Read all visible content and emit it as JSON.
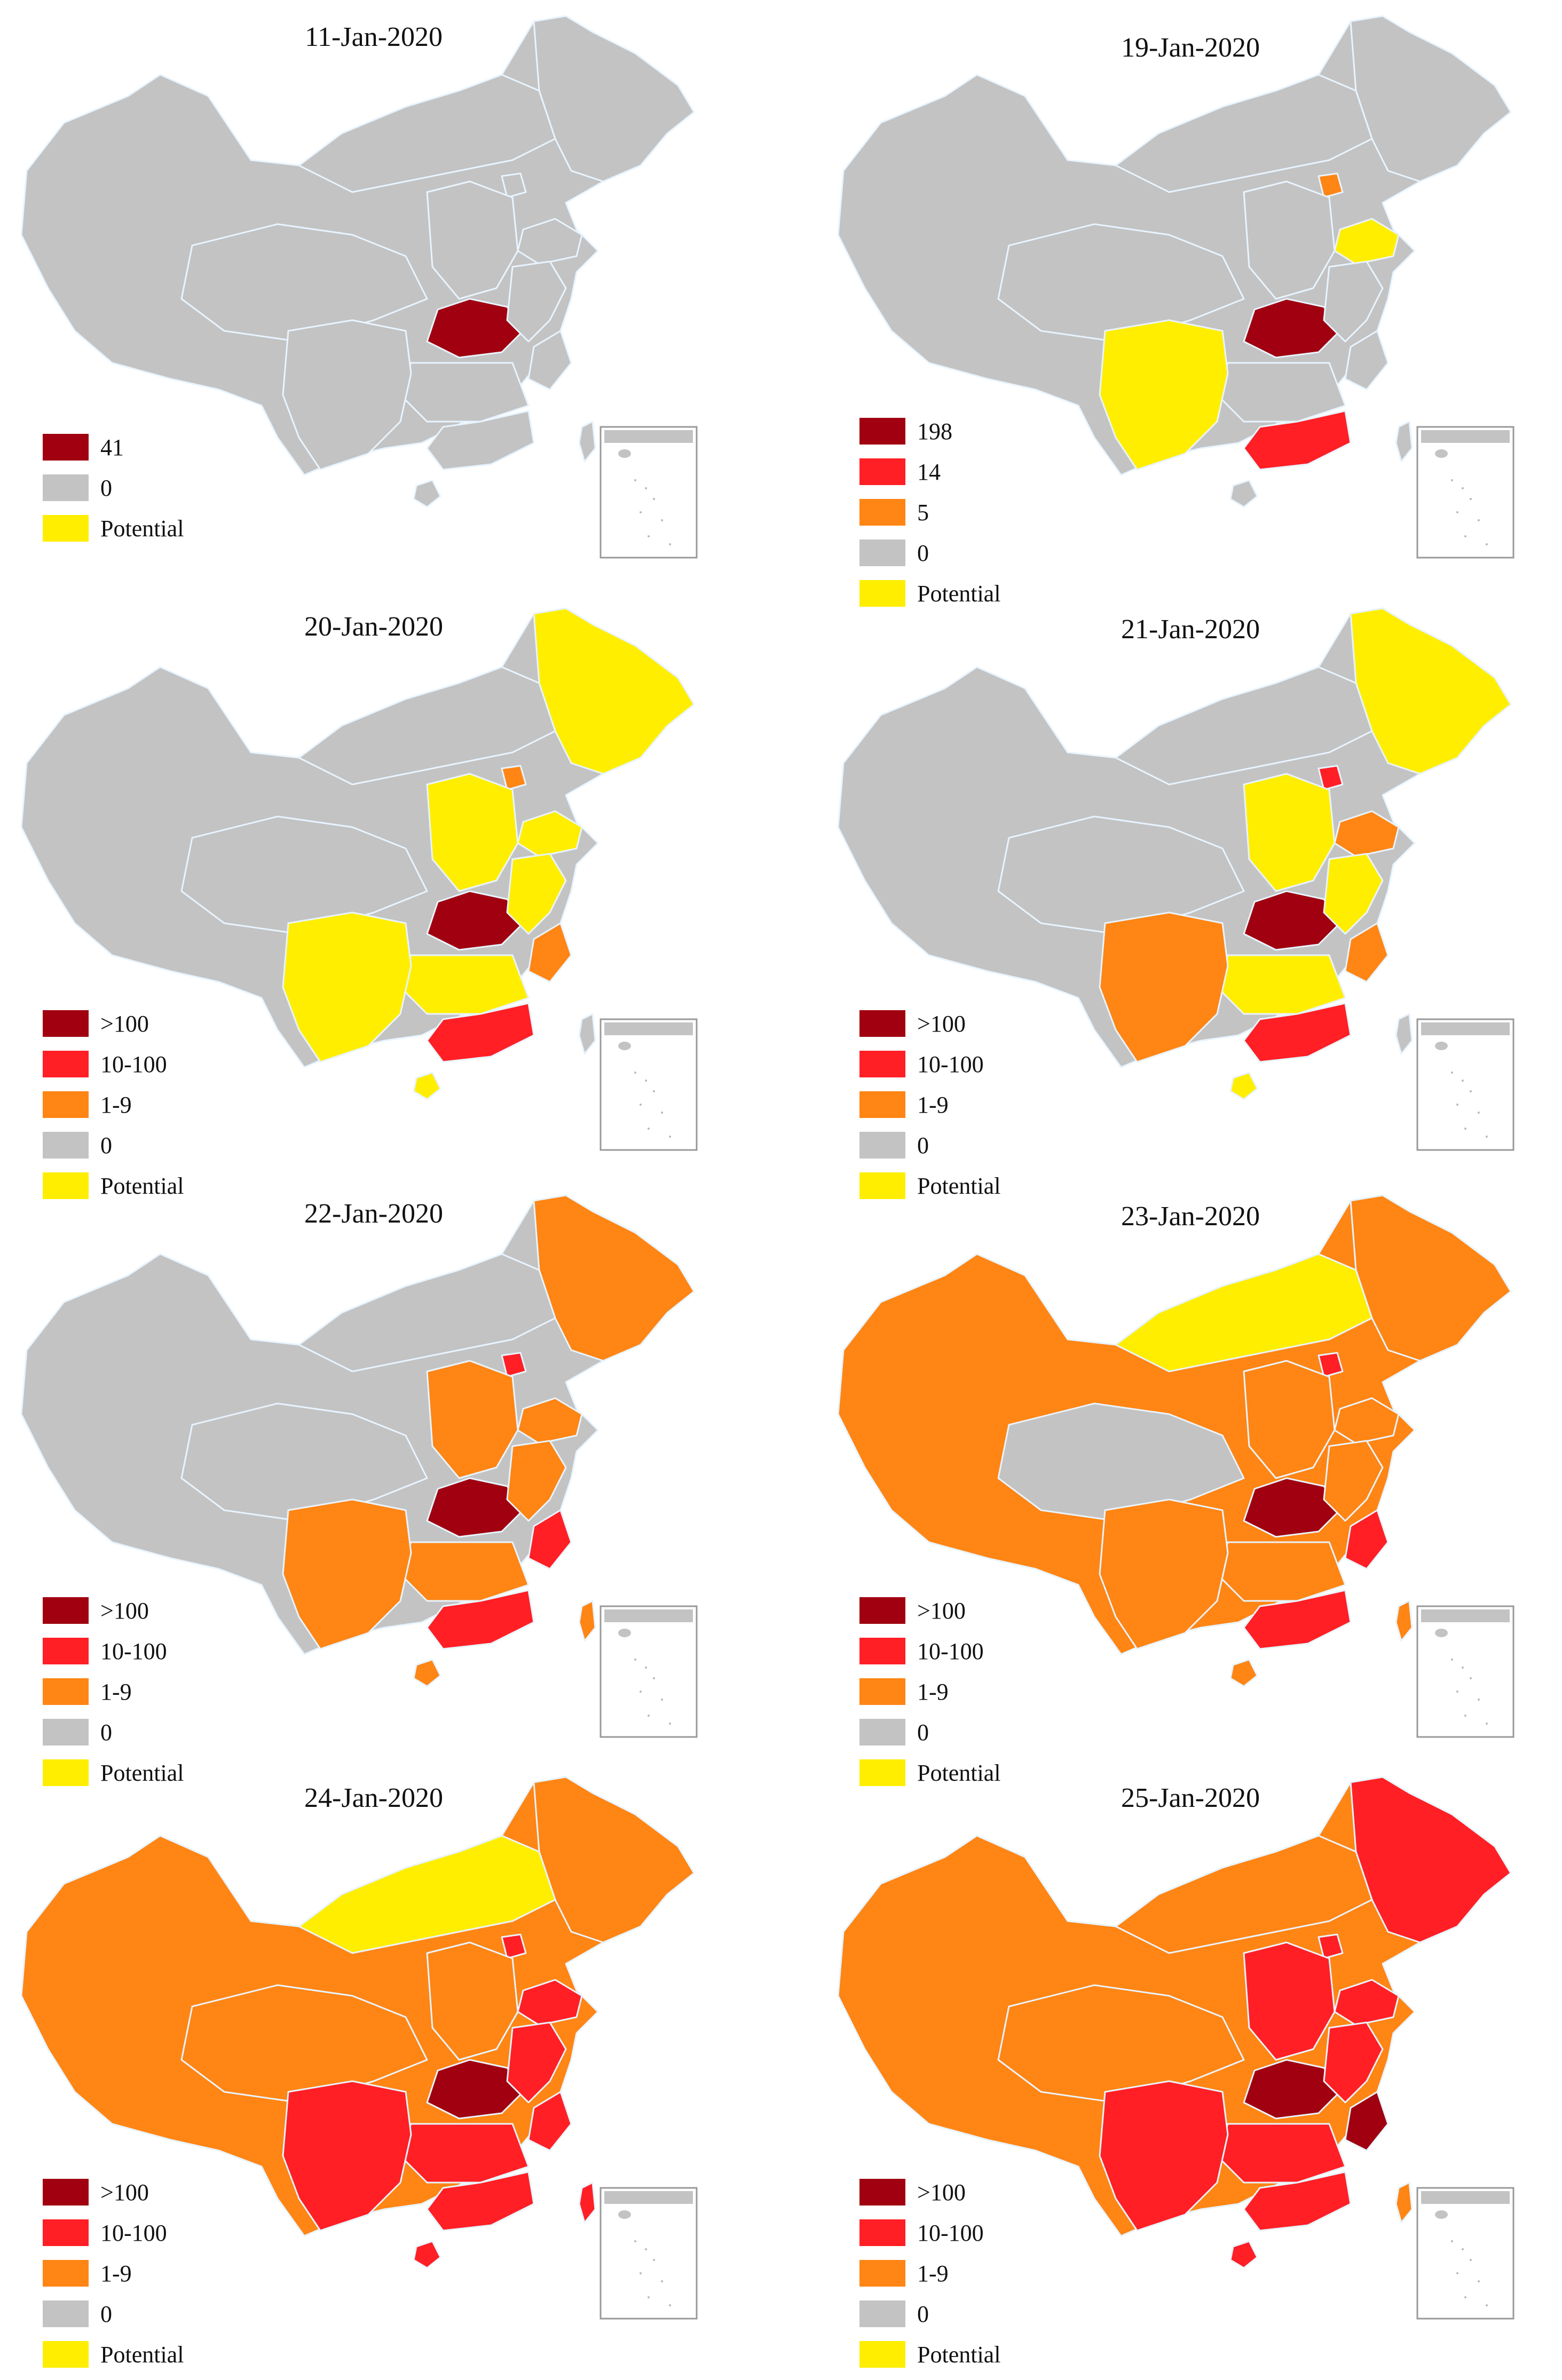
{
  "colors": {
    "dark_red": "#a0000f",
    "red": "#ff1f25",
    "orange": "#ff8514",
    "gray": "#c3c3c3",
    "yellow": "#ffee00",
    "border": "#e8f4ff"
  },
  "panels": [
    {
      "title": "11-Jan-2020",
      "legend": [
        {
          "label": "41",
          "color": "#a0000f"
        },
        {
          "label": "0",
          "color": "#c3c3c3"
        },
        {
          "label": "Potential",
          "color": "#ffee00"
        }
      ],
      "fills": {
        "base": "#c3c3c3",
        "northeast": "#c3c3c3",
        "north": "#c3c3c3",
        "beijing": "#c3c3c3",
        "shandong": "#c3c3c3",
        "central_north": "#c3c3c3",
        "west_central": "#c3c3c3",
        "hubei": "#a0000f",
        "east": "#c3c3c3",
        "zhejiang": "#c3c3c3",
        "south_central": "#c3c3c3",
        "guangdong": "#c3c3c3",
        "southwest": "#c3c3c3",
        "hainan": "#c3c3c3",
        "taiwan": "#c3c3c3"
      }
    },
    {
      "title": "19-Jan-2020",
      "legend": [
        {
          "label": "198",
          "color": "#a0000f"
        },
        {
          "label": "14",
          "color": "#ff1f25"
        },
        {
          "label": "5",
          "color": "#ff8514"
        },
        {
          "label": "0",
          "color": "#c3c3c3"
        },
        {
          "label": "Potential",
          "color": "#ffee00"
        }
      ],
      "fills": {
        "base": "#c3c3c3",
        "northeast": "#c3c3c3",
        "north": "#c3c3c3",
        "beijing": "#ff8514",
        "shandong": "#ffee00",
        "central_north": "#c3c3c3",
        "west_central": "#c3c3c3",
        "hubei": "#a0000f",
        "east": "#c3c3c3",
        "zhejiang": "#c3c3c3",
        "south_central": "#c3c3c3",
        "guangdong": "#ff1f25",
        "southwest": "#ffee00",
        "hainan": "#c3c3c3",
        "taiwan": "#c3c3c3"
      }
    },
    {
      "title": "20-Jan-2020",
      "legend": [
        {
          "label": ">100",
          "color": "#a0000f"
        },
        {
          "label": "10-100",
          "color": "#ff1f25"
        },
        {
          "label": "1-9",
          "color": "#ff8514"
        },
        {
          "label": "0",
          "color": "#c3c3c3"
        },
        {
          "label": "Potential",
          "color": "#ffee00"
        }
      ],
      "fills": {
        "base": "#c3c3c3",
        "northeast": "#ffee00",
        "north": "#c3c3c3",
        "beijing": "#ff8514",
        "shandong": "#ffee00",
        "central_north": "#ffee00",
        "west_central": "#c3c3c3",
        "hubei": "#a0000f",
        "east": "#ffee00",
        "zhejiang": "#ff8514",
        "south_central": "#ffee00",
        "guangdong": "#ff1f25",
        "southwest": "#ffee00",
        "hainan": "#ffee00",
        "taiwan": "#c3c3c3"
      }
    },
    {
      "title": "21-Jan-2020",
      "legend": [
        {
          "label": ">100",
          "color": "#a0000f"
        },
        {
          "label": "10-100",
          "color": "#ff1f25"
        },
        {
          "label": "1-9",
          "color": "#ff8514"
        },
        {
          "label": "0",
          "color": "#c3c3c3"
        },
        {
          "label": "Potential",
          "color": "#ffee00"
        }
      ],
      "fills": {
        "base": "#c3c3c3",
        "northeast": "#ffee00",
        "north": "#c3c3c3",
        "beijing": "#ff1f25",
        "shandong": "#ff8514",
        "central_north": "#ffee00",
        "west_central": "#c3c3c3",
        "hubei": "#a0000f",
        "east": "#ffee00",
        "zhejiang": "#ff8514",
        "south_central": "#ffee00",
        "guangdong": "#ff1f25",
        "southwest": "#ff8514",
        "hainan": "#ffee00",
        "taiwan": "#c3c3c3"
      }
    },
    {
      "title": "22-Jan-2020",
      "legend": [
        {
          "label": ">100",
          "color": "#a0000f"
        },
        {
          "label": "10-100",
          "color": "#ff1f25"
        },
        {
          "label": "1-9",
          "color": "#ff8514"
        },
        {
          "label": "0",
          "color": "#c3c3c3"
        },
        {
          "label": "Potential",
          "color": "#ffee00"
        }
      ],
      "fills": {
        "base": "#c3c3c3",
        "northeast": "#ff8514",
        "north": "#c3c3c3",
        "beijing": "#ff1f25",
        "shandong": "#ff8514",
        "central_north": "#ff8514",
        "west_central": "#c3c3c3",
        "hubei": "#a0000f",
        "east": "#ff8514",
        "zhejiang": "#ff1f25",
        "south_central": "#ff8514",
        "guangdong": "#ff1f25",
        "southwest": "#ff8514",
        "hainan": "#ff8514",
        "taiwan": "#ff8514"
      }
    },
    {
      "title": "23-Jan-2020",
      "legend": [
        {
          "label": ">100",
          "color": "#a0000f"
        },
        {
          "label": "10-100",
          "color": "#ff1f25"
        },
        {
          "label": "1-9",
          "color": "#ff8514"
        },
        {
          "label": "0",
          "color": "#c3c3c3"
        },
        {
          "label": "Potential",
          "color": "#ffee00"
        }
      ],
      "fills": {
        "base": "#ff8514",
        "northeast": "#ff8514",
        "north": "#ffee00",
        "beijing": "#ff1f25",
        "shandong": "#ff8514",
        "central_north": "#ff8514",
        "west_central": "#c3c3c3",
        "hubei": "#a0000f",
        "east": "#ff8514",
        "zhejiang": "#ff1f25",
        "south_central": "#ff8514",
        "guangdong": "#ff1f25",
        "southwest": "#ff8514",
        "hainan": "#ff8514",
        "taiwan": "#ff8514"
      }
    },
    {
      "title": "24-Jan-2020",
      "legend": [
        {
          "label": ">100",
          "color": "#a0000f"
        },
        {
          "label": "10-100",
          "color": "#ff1f25"
        },
        {
          "label": "1-9",
          "color": "#ff8514"
        },
        {
          "label": "0",
          "color": "#c3c3c3"
        },
        {
          "label": "Potential",
          "color": "#ffee00"
        }
      ],
      "fills": {
        "base": "#ff8514",
        "northeast": "#ff8514",
        "north": "#ffee00",
        "beijing": "#ff1f25",
        "shandong": "#ff1f25",
        "central_north": "#ff8514",
        "west_central": "#ff8514",
        "hubei": "#a0000f",
        "east": "#ff1f25",
        "zhejiang": "#ff1f25",
        "south_central": "#ff1f25",
        "guangdong": "#ff1f25",
        "southwest": "#ff1f25",
        "hainan": "#ff1f25",
        "taiwan": "#ff1f25"
      }
    },
    {
      "title": "25-Jan-2020",
      "legend": [
        {
          "label": ">100",
          "color": "#a0000f"
        },
        {
          "label": "10-100",
          "color": "#ff1f25"
        },
        {
          "label": "1-9",
          "color": "#ff8514"
        },
        {
          "label": "0",
          "color": "#c3c3c3"
        },
        {
          "label": "Potential",
          "color": "#ffee00"
        }
      ],
      "fills": {
        "base": "#ff8514",
        "northeast": "#ff1f25",
        "north": "#ff8514",
        "beijing": "#ff1f25",
        "shandong": "#ff1f25",
        "central_north": "#ff1f25",
        "west_central": "#ff8514",
        "hubei": "#a0000f",
        "east": "#ff1f25",
        "zhejiang": "#a0000f",
        "south_central": "#ff1f25",
        "guangdong": "#ff1f25",
        "southwest": "#ff1f25",
        "hainan": "#ff1f25",
        "taiwan": "#ff8514"
      }
    }
  ]
}
